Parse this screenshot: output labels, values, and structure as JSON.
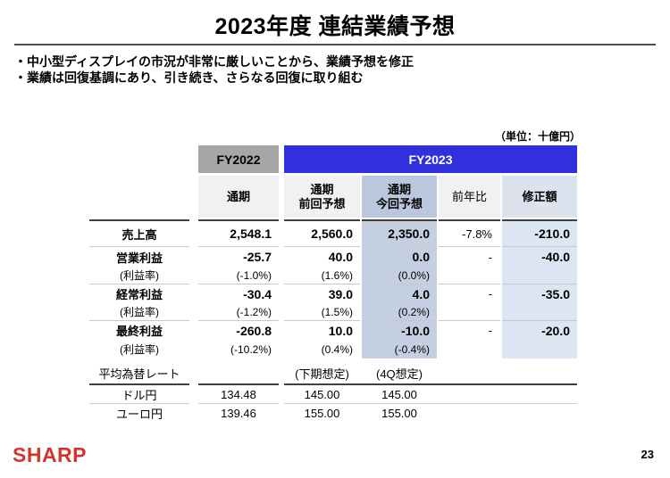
{
  "title": "2023年度 連結業績予想",
  "bullets": [
    "・中小型ディスプレイの市況が非常に厳しいことから、業績予想を修正",
    "・業績は回復基調にあり、引き続き、さらなる回復に取り組む"
  ],
  "unit_label": "（単位：十億円）",
  "main_table": {
    "group_headers": {
      "fy2022": "FY2022",
      "fy2023": "FY2023"
    },
    "col_headers": {
      "fy2022_total": "通期",
      "prev_forecast": "通期\n前回予想",
      "curr_forecast": "通期\n今回予想",
      "yoy": "前年比",
      "revision": "修正額"
    },
    "rows": [
      {
        "label": "売上高",
        "fy2022": "2,548.1",
        "prev": "2,560.0",
        "curr": "2,350.0",
        "yoy": "-7.8%",
        "rev": "-210.0"
      },
      {
        "label": "営業利益",
        "fy2022": "-25.7",
        "prev": "40.0",
        "curr": "0.0",
        "yoy": "-",
        "rev": "-40.0"
      },
      {
        "label": "(利益率)",
        "fy2022": "(-1.0%)",
        "prev": "(1.6%)",
        "curr": "(0.0%)",
        "yoy": "",
        "rev": ""
      },
      {
        "label": "経常利益",
        "fy2022": "-30.4",
        "prev": "39.0",
        "curr": "4.0",
        "yoy": "-",
        "rev": "-35.0"
      },
      {
        "label": "(利益率)",
        "fy2022": "(-1.2%)",
        "prev": "(1.5%)",
        "curr": "(0.2%)",
        "yoy": "",
        "rev": ""
      },
      {
        "label": "最終利益",
        "fy2022": "-260.8",
        "prev": "10.0",
        "curr": "-10.0",
        "yoy": "-",
        "rev": "-20.0"
      },
      {
        "label": "(利益率)",
        "fy2022": "(-10.2%)",
        "prev": "(0.4%)",
        "curr": "(-0.4%)",
        "yoy": "",
        "rev": ""
      }
    ]
  },
  "fx": {
    "header_label": "平均為替レート",
    "col_labels": [
      "(下期想定)",
      "(4Q想定)"
    ],
    "rows": [
      {
        "label": "ドル円",
        "fy2022": "134.48",
        "h2": "145.00",
        "q4": "145.00"
      },
      {
        "label": "ユーロ円",
        "fy2022": "139.46",
        "h2": "155.00",
        "q4": "155.00"
      }
    ]
  },
  "footer": {
    "logo": "SHARP",
    "page": "23"
  },
  "colors": {
    "fy2023_blue": "#3030dd",
    "fy2022_gray": "#a6a6a6",
    "header_light_gray": "#f1f1f1",
    "current_forecast_header": "#bac7dc",
    "current_forecast_data": "#c4cfe1",
    "revision_header": "#dde3ee",
    "revision_data": "#dce6f2",
    "sharp_red": "#d3342e"
  }
}
